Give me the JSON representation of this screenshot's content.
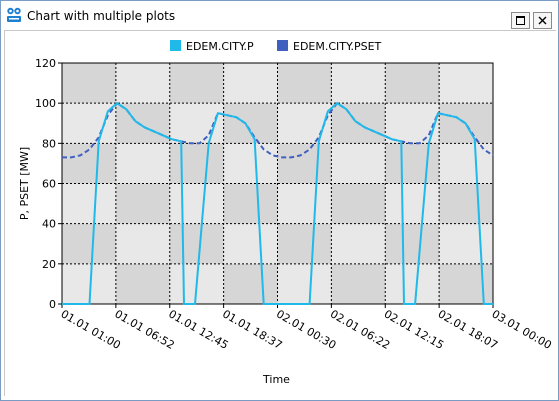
{
  "window": {
    "title": "Chart with multiple plots",
    "icons": {
      "app": "app-logo-icon",
      "maximize": "maximize-icon",
      "close": "close-icon"
    }
  },
  "chart_data": {
    "type": "line",
    "title": "",
    "xlabel": "Time",
    "ylabel": "P, PSET [MW]",
    "ylim": [
      0,
      120
    ],
    "xlim": [
      "01.01 01:00",
      "03.01 00:00"
    ],
    "xticks": [
      "01.01 01:00",
      "01.01 06:52",
      "01.01 12:45",
      "01.01 18:37",
      "02.01 00:30",
      "02.01 06:22",
      "02.01 12:15",
      "02.01 18:07",
      "03.01 00:00"
    ],
    "xtick_hours": [
      0,
      5.875,
      11.75,
      17.625,
      23.5,
      29.375,
      35.25,
      41.125,
      47
    ],
    "yticks": [
      0,
      20,
      40,
      60,
      80,
      100,
      120
    ],
    "grid": true,
    "legend_position": "top",
    "series": [
      {
        "name": "EDEM.CITY.P",
        "color": "#1fb9ea",
        "style": "solid",
        "points": [
          [
            0,
            0
          ],
          [
            3,
            0
          ],
          [
            4,
            81
          ],
          [
            5,
            96
          ],
          [
            6,
            100
          ],
          [
            7,
            97
          ],
          [
            8,
            91
          ],
          [
            9,
            88
          ],
          [
            10,
            86
          ],
          [
            11,
            84
          ],
          [
            12,
            82
          ],
          [
            13,
            81
          ],
          [
            13.3,
            0
          ],
          [
            14.5,
            0
          ],
          [
            16,
            80
          ],
          [
            17,
            95
          ],
          [
            18,
            94
          ],
          [
            19,
            93
          ],
          [
            20,
            90
          ],
          [
            21,
            82
          ],
          [
            22,
            0
          ],
          [
            24,
            0
          ],
          [
            27,
            0
          ],
          [
            28,
            81
          ],
          [
            29,
            96
          ],
          [
            30,
            100
          ],
          [
            31,
            97
          ],
          [
            32,
            91
          ],
          [
            33,
            88
          ],
          [
            34,
            86
          ],
          [
            35,
            84
          ],
          [
            36,
            82
          ],
          [
            37,
            81
          ],
          [
            37.3,
            0
          ],
          [
            38.5,
            0
          ],
          [
            40,
            80
          ],
          [
            41,
            95
          ],
          [
            42,
            94
          ],
          [
            43,
            93
          ],
          [
            44,
            90
          ],
          [
            45,
            82
          ],
          [
            46,
            0
          ],
          [
            47,
            0
          ]
        ]
      },
      {
        "name": "EDEM.CITY.PSET",
        "color": "#4060c0",
        "style": "dashed",
        "points": [
          [
            0,
            73
          ],
          [
            1,
            73
          ],
          [
            2,
            74
          ],
          [
            3,
            77
          ],
          [
            4,
            83
          ],
          [
            5,
            94
          ],
          [
            6,
            100
          ],
          [
            7,
            97
          ],
          [
            8,
            91
          ],
          [
            9,
            88
          ],
          [
            10,
            86
          ],
          [
            11,
            84
          ],
          [
            12,
            82
          ],
          [
            13,
            81
          ],
          [
            14,
            80
          ],
          [
            15,
            80
          ],
          [
            16,
            84
          ],
          [
            17,
            95
          ],
          [
            18,
            94
          ],
          [
            19,
            93
          ],
          [
            20,
            90
          ],
          [
            21,
            83
          ],
          [
            22,
            77
          ],
          [
            23,
            74
          ],
          [
            24,
            73
          ],
          [
            25,
            73
          ],
          [
            26,
            74
          ],
          [
            27,
            77
          ],
          [
            28,
            83
          ],
          [
            29,
            94
          ],
          [
            30,
            100
          ],
          [
            31,
            97
          ],
          [
            32,
            91
          ],
          [
            33,
            88
          ],
          [
            34,
            86
          ],
          [
            35,
            84
          ],
          [
            36,
            82
          ],
          [
            37,
            81
          ],
          [
            38,
            80
          ],
          [
            39,
            80
          ],
          [
            40,
            84
          ],
          [
            41,
            95
          ],
          [
            42,
            94
          ],
          [
            43,
            93
          ],
          [
            44,
            90
          ],
          [
            45,
            83
          ],
          [
            46,
            77
          ],
          [
            47,
            74
          ]
        ]
      }
    ]
  }
}
